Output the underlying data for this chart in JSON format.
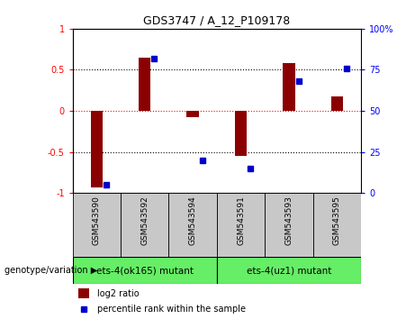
{
  "title": "GDS3747 / A_12_P109178",
  "samples": [
    "GSM543590",
    "GSM543592",
    "GSM543594",
    "GSM543591",
    "GSM543593",
    "GSM543595"
  ],
  "log2_ratio": [
    -0.93,
    0.65,
    -0.08,
    -0.55,
    0.58,
    0.18
  ],
  "percentile_rank": [
    5,
    82,
    20,
    15,
    68,
    76
  ],
  "groups": [
    {
      "label": "ets-4(ok165) mutant",
      "color": "#66EE66"
    },
    {
      "label": "ets-4(uz1) mutant",
      "color": "#66EE66"
    }
  ],
  "bar_color": "#8B0000",
  "dot_color": "#0000CC",
  "ylim_left": [
    -1,
    1
  ],
  "ylim_right": [
    0,
    100
  ],
  "yticks_left": [
    -1,
    -0.5,
    0,
    0.5,
    1
  ],
  "yticks_right": [
    0,
    25,
    50,
    75,
    100
  ],
  "ytick_labels_left": [
    "-1",
    "-0.5",
    "0",
    "0.5",
    "1"
  ],
  "ytick_labels_right": [
    "0",
    "25",
    "50",
    "75",
    "100%"
  ],
  "hline_dotted": [
    -0.5,
    0.5
  ],
  "hline_red": 0,
  "legend_items": [
    {
      "label": "log2 ratio",
      "color": "#8B0000"
    },
    {
      "label": "percentile rank within the sample",
      "color": "#0000CC"
    }
  ],
  "genotype_label": "genotype/variation"
}
